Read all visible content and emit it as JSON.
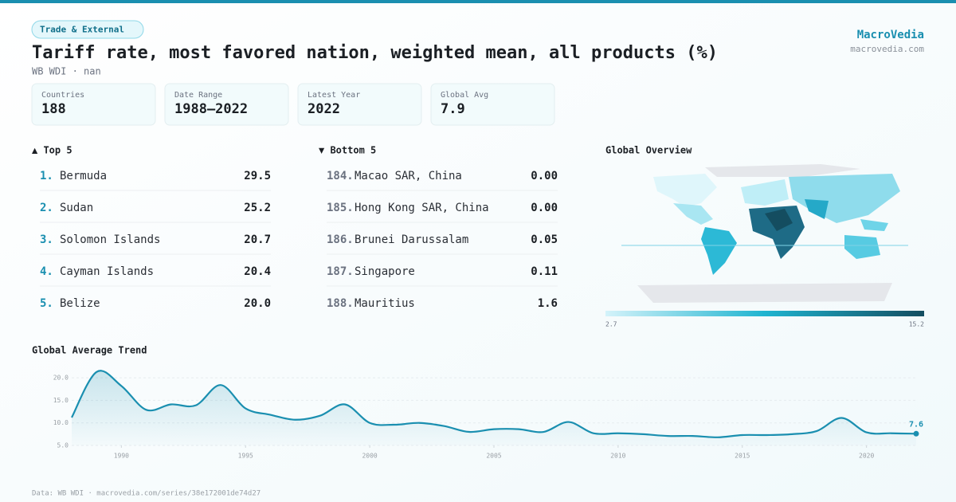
{
  "header": {
    "tag": "Trade & External",
    "title": "Tariff rate, most favored nation, weighted mean, all products (%)",
    "subtitle": "WB WDI · nan",
    "brand": "MacroVedia",
    "site": "macrovedia.com"
  },
  "stats": [
    {
      "label": "Countries",
      "value": "188"
    },
    {
      "label": "Date Range",
      "value": "1988–2022"
    },
    {
      "label": "Latest Year",
      "value": "2022"
    },
    {
      "label": "Global Avg",
      "value": "7.9"
    }
  ],
  "top": {
    "heading": "▲ Top 5",
    "rows": [
      {
        "rank": "1.",
        "name": "Bermuda",
        "value": "29.5"
      },
      {
        "rank": "2.",
        "name": "Sudan",
        "value": "25.2"
      },
      {
        "rank": "3.",
        "name": "Solomon Islands",
        "value": "20.7"
      },
      {
        "rank": "4.",
        "name": "Cayman Islands",
        "value": "20.4"
      },
      {
        "rank": "5.",
        "name": "Belize",
        "value": "20.0"
      }
    ]
  },
  "bottom": {
    "heading": "▼ Bottom 5",
    "rows": [
      {
        "rank": "184.",
        "name": "Macao SAR, China",
        "value": "0.00"
      },
      {
        "rank": "185.",
        "name": "Hong Kong SAR, China",
        "value": "0.00"
      },
      {
        "rank": "186.",
        "name": "Brunei Darussalam",
        "value": "0.05"
      },
      {
        "rank": "187.",
        "name": "Singapore",
        "value": "0.11"
      },
      {
        "rank": "188.",
        "name": "Mauritius",
        "value": "1.6"
      }
    ]
  },
  "map": {
    "title": "Global Overview",
    "scale_min": 2.7,
    "scale_max": 15.2
  },
  "chart_data": {
    "type": "line",
    "title": "Global Average Trend",
    "x": [
      1988,
      1989,
      1990,
      1991,
      1992,
      1993,
      1994,
      1995,
      1996,
      1997,
      1998,
      1999,
      2000,
      2001,
      2002,
      2003,
      2004,
      2005,
      2006,
      2007,
      2008,
      2009,
      2010,
      2011,
      2012,
      2013,
      2014,
      2015,
      2016,
      2017,
      2018,
      2019,
      2020,
      2021,
      2022
    ],
    "series": [
      {
        "name": "Global average",
        "color": "#1a8fb0",
        "values": [
          11.2,
          21.3,
          18.2,
          12.9,
          14.1,
          13.9,
          18.4,
          13.2,
          11.8,
          10.7,
          11.6,
          14.1,
          10.0,
          9.6,
          10.0,
          9.3,
          8.0,
          8.6,
          8.6,
          8.0,
          10.2,
          7.7,
          7.7,
          7.5,
          7.1,
          7.1,
          6.8,
          7.3,
          7.3,
          7.5,
          8.2,
          11.1,
          7.9,
          7.7,
          7.6
        ]
      }
    ],
    "xlim": [
      1988,
      2022
    ],
    "ylim": [
      5,
      22.5
    ],
    "xticks": [
      1990,
      1995,
      2000,
      2005,
      2010,
      2015,
      2020
    ],
    "yticks": [
      {
        "value": 5,
        "label": "5.0"
      },
      {
        "value": 10,
        "label": "10.0"
      },
      {
        "value": 15,
        "label": "15.0"
      },
      {
        "value": 20,
        "label": "20.0"
      }
    ],
    "grid": true
  },
  "footer": "Data: WB WDI · macrovedia.com/series/38e172001de74d27"
}
